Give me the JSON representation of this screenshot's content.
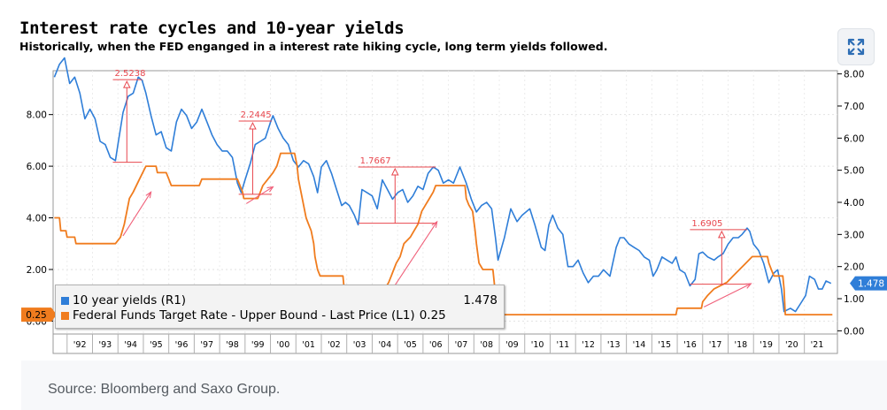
{
  "chart_data": {
    "type": "line",
    "title": "Interest rate cycles and 10-year yields",
    "subtitle": "Historically, when the FED enganged in a interest rate hiking cycle, long term yields followed.",
    "source": "Source: Bloomberg and Saxo Group.",
    "x_ticks": [
      "'92",
      "'93",
      "'94",
      "'95",
      "'96",
      "'97",
      "'98",
      "'99",
      "'00",
      "'01",
      "'02",
      "'03",
      "'04",
      "'05",
      "'06",
      "'07",
      "'08",
      "'09",
      "'10",
      "'11",
      "'12",
      "'13",
      "'14",
      "'15",
      "'16",
      "'17",
      "'18",
      "'19",
      "'20",
      "'21"
    ],
    "xlim": [
      1991.45,
      2022.3
    ],
    "left_axis": {
      "ticks": [
        "0.00",
        "2.00",
        "4.00",
        "6.00",
        "8.00"
      ],
      "values": [
        0,
        2,
        4,
        6,
        8
      ],
      "ylim": [
        -0.5,
        9.7
      ]
    },
    "right_axis": {
      "ticks": [
        "0.00",
        "1.00",
        "2.00",
        "3.00",
        "4.00",
        "5.00",
        "6.00",
        "7.00",
        "8.00"
      ],
      "values": [
        0,
        1,
        2,
        3,
        4,
        5,
        6,
        7,
        8
      ],
      "ylim": [
        -0.1,
        8.1
      ]
    },
    "series": [
      {
        "name": "10 year yields (R1)",
        "color": "#2f7ed8",
        "axis": "right",
        "last_value": "1.478",
        "points": [
          [
            1991.5,
            7.9
          ],
          [
            1991.7,
            8.3
          ],
          [
            1991.9,
            8.5
          ],
          [
            1992.1,
            7.7
          ],
          [
            1992.3,
            7.9
          ],
          [
            1992.5,
            7.4
          ],
          [
            1992.7,
            6.6
          ],
          [
            1992.9,
            6.9
          ],
          [
            1993.1,
            6.6
          ],
          [
            1993.3,
            5.9
          ],
          [
            1993.5,
            5.8
          ],
          [
            1993.7,
            5.4
          ],
          [
            1993.9,
            5.3
          ],
          [
            1994.0,
            5.8
          ],
          [
            1994.2,
            6.8
          ],
          [
            1994.4,
            7.3
          ],
          [
            1994.6,
            7.4
          ],
          [
            1994.8,
            7.9
          ],
          [
            1994.95,
            7.8
          ],
          [
            1995.1,
            7.4
          ],
          [
            1995.3,
            6.7
          ],
          [
            1995.5,
            6.1
          ],
          [
            1995.7,
            6.2
          ],
          [
            1995.9,
            5.7
          ],
          [
            1996.1,
            5.6
          ],
          [
            1996.3,
            6.5
          ],
          [
            1996.5,
            6.9
          ],
          [
            1996.7,
            6.7
          ],
          [
            1996.9,
            6.3
          ],
          [
            1997.1,
            6.5
          ],
          [
            1997.3,
            6.9
          ],
          [
            1997.5,
            6.5
          ],
          [
            1997.7,
            6.1
          ],
          [
            1997.9,
            5.8
          ],
          [
            1998.1,
            5.6
          ],
          [
            1998.3,
            5.6
          ],
          [
            1998.5,
            5.4
          ],
          [
            1998.7,
            4.6
          ],
          [
            1998.85,
            4.3
          ],
          [
            1999.0,
            4.7
          ],
          [
            1999.2,
            5.2
          ],
          [
            1999.4,
            5.8
          ],
          [
            1999.6,
            5.9
          ],
          [
            1999.8,
            6.0
          ],
          [
            2000.0,
            6.5
          ],
          [
            2000.1,
            6.7
          ],
          [
            2000.3,
            6.3
          ],
          [
            2000.5,
            6.0
          ],
          [
            2000.7,
            5.8
          ],
          [
            2000.9,
            5.3
          ],
          [
            2001.1,
            5.1
          ],
          [
            2001.3,
            5.3
          ],
          [
            2001.5,
            5.2
          ],
          [
            2001.7,
            4.8
          ],
          [
            2001.85,
            4.3
          ],
          [
            2002.0,
            5.1
          ],
          [
            2002.2,
            5.3
          ],
          [
            2002.4,
            4.9
          ],
          [
            2002.6,
            4.4
          ],
          [
            2002.8,
            3.9
          ],
          [
            2002.95,
            4.0
          ],
          [
            2003.1,
            3.9
          ],
          [
            2003.3,
            3.6
          ],
          [
            2003.45,
            3.3
          ],
          [
            2003.6,
            4.4
          ],
          [
            2003.8,
            4.3
          ],
          [
            2004.0,
            4.2
          ],
          [
            2004.2,
            3.8
          ],
          [
            2004.4,
            4.7
          ],
          [
            2004.6,
            4.4
          ],
          [
            2004.8,
            4.1
          ],
          [
            2005.0,
            4.3
          ],
          [
            2005.2,
            4.4
          ],
          [
            2005.4,
            4.0
          ],
          [
            2005.6,
            4.2
          ],
          [
            2005.8,
            4.5
          ],
          [
            2006.0,
            4.4
          ],
          [
            2006.2,
            4.9
          ],
          [
            2006.4,
            5.1
          ],
          [
            2006.6,
            5.0
          ],
          [
            2006.8,
            4.6
          ],
          [
            2007.0,
            4.7
          ],
          [
            2007.2,
            4.6
          ],
          [
            2007.45,
            5.1
          ],
          [
            2007.7,
            4.6
          ],
          [
            2007.9,
            4.1
          ],
          [
            2008.1,
            3.7
          ],
          [
            2008.3,
            3.9
          ],
          [
            2008.5,
            4.0
          ],
          [
            2008.7,
            3.8
          ],
          [
            2008.85,
            2.9
          ],
          [
            2008.95,
            2.2
          ],
          [
            2009.2,
            2.9
          ],
          [
            2009.45,
            3.8
          ],
          [
            2009.7,
            3.4
          ],
          [
            2009.9,
            3.6
          ],
          [
            2010.2,
            3.8
          ],
          [
            2010.4,
            3.3
          ],
          [
            2010.65,
            2.6
          ],
          [
            2010.8,
            2.5
          ],
          [
            2010.95,
            3.3
          ],
          [
            2011.1,
            3.6
          ],
          [
            2011.3,
            3.2
          ],
          [
            2011.5,
            3.0
          ],
          [
            2011.7,
            2.0
          ],
          [
            2011.9,
            2.0
          ],
          [
            2012.1,
            2.2
          ],
          [
            2012.3,
            1.8
          ],
          [
            2012.5,
            1.5
          ],
          [
            2012.7,
            1.7
          ],
          [
            2012.9,
            1.7
          ],
          [
            2013.1,
            1.9
          ],
          [
            2013.35,
            1.7
          ],
          [
            2013.6,
            2.6
          ],
          [
            2013.75,
            2.9
          ],
          [
            2013.9,
            2.9
          ],
          [
            2014.1,
            2.7
          ],
          [
            2014.3,
            2.6
          ],
          [
            2014.5,
            2.5
          ],
          [
            2014.7,
            2.3
          ],
          [
            2014.9,
            2.2
          ],
          [
            2015.05,
            1.7
          ],
          [
            2015.2,
            1.9
          ],
          [
            2015.4,
            2.3
          ],
          [
            2015.6,
            2.2
          ],
          [
            2015.8,
            2.1
          ],
          [
            2015.95,
            2.3
          ],
          [
            2016.1,
            1.9
          ],
          [
            2016.3,
            1.8
          ],
          [
            2016.5,
            1.4
          ],
          [
            2016.7,
            1.6
          ],
          [
            2016.85,
            2.4
          ],
          [
            2017.0,
            2.45
          ],
          [
            2017.2,
            2.3
          ],
          [
            2017.45,
            2.2
          ],
          [
            2017.6,
            2.3
          ],
          [
            2017.8,
            2.4
          ],
          [
            2018.0,
            2.7
          ],
          [
            2018.2,
            2.9
          ],
          [
            2018.4,
            2.9
          ],
          [
            2018.55,
            3.0
          ],
          [
            2018.75,
            3.2
          ],
          [
            2018.85,
            3.1
          ],
          [
            2019.0,
            2.7
          ],
          [
            2019.2,
            2.5
          ],
          [
            2019.4,
            2.1
          ],
          [
            2019.6,
            1.5
          ],
          [
            2019.8,
            1.8
          ],
          [
            2019.95,
            1.9
          ],
          [
            2020.1,
            1.3
          ],
          [
            2020.2,
            0.6
          ],
          [
            2020.45,
            0.7
          ],
          [
            2020.65,
            0.6
          ],
          [
            2020.85,
            0.85
          ],
          [
            2021.05,
            1.1
          ],
          [
            2021.2,
            1.7
          ],
          [
            2021.4,
            1.6
          ],
          [
            2021.55,
            1.3
          ],
          [
            2021.7,
            1.3
          ],
          [
            2021.85,
            1.55
          ],
          [
            2022.05,
            1.478
          ]
        ]
      },
      {
        "name": "Federal Funds Target Rate - Upper Bound - Last Price (L1)",
        "color": "#f07c1e",
        "axis": "left",
        "last_value": "0.25",
        "points": [
          [
            1991.5,
            4.0
          ],
          [
            1991.7,
            4.0
          ],
          [
            1991.75,
            3.5
          ],
          [
            1991.95,
            3.5
          ],
          [
            1992.0,
            3.25
          ],
          [
            1992.3,
            3.25
          ],
          [
            1992.35,
            3.0
          ],
          [
            1993.9,
            3.0
          ],
          [
            1994.1,
            3.25
          ],
          [
            1994.25,
            3.75
          ],
          [
            1994.35,
            4.25
          ],
          [
            1994.45,
            4.75
          ],
          [
            1994.6,
            5.0
          ],
          [
            1994.85,
            5.5
          ],
          [
            1995.1,
            6.0
          ],
          [
            1995.5,
            6.0
          ],
          [
            1995.55,
            5.75
          ],
          [
            1995.9,
            5.75
          ],
          [
            1996.0,
            5.5
          ],
          [
            1996.1,
            5.25
          ],
          [
            1997.2,
            5.25
          ],
          [
            1997.3,
            5.5
          ],
          [
            1998.7,
            5.5
          ],
          [
            1998.8,
            5.25
          ],
          [
            1998.9,
            5.0
          ],
          [
            1998.95,
            4.75
          ],
          [
            1999.5,
            4.75
          ],
          [
            1999.6,
            5.0
          ],
          [
            1999.7,
            5.25
          ],
          [
            1999.9,
            5.5
          ],
          [
            2000.1,
            5.75
          ],
          [
            2000.25,
            6.0
          ],
          [
            2000.4,
            6.5
          ],
          [
            2000.95,
            6.5
          ],
          [
            2001.05,
            6.0
          ],
          [
            2001.1,
            5.5
          ],
          [
            2001.2,
            5.0
          ],
          [
            2001.3,
            4.5
          ],
          [
            2001.4,
            4.0
          ],
          [
            2001.5,
            3.75
          ],
          [
            2001.6,
            3.5
          ],
          [
            2001.7,
            3.0
          ],
          [
            2001.75,
            2.5
          ],
          [
            2001.85,
            2.0
          ],
          [
            2001.95,
            1.75
          ],
          [
            2002.85,
            1.75
          ],
          [
            2002.9,
            1.25
          ],
          [
            2003.45,
            1.25
          ],
          [
            2003.5,
            1.0
          ],
          [
            2004.45,
            1.0
          ],
          [
            2004.5,
            1.25
          ],
          [
            2004.65,
            1.5
          ],
          [
            2004.75,
            1.75
          ],
          [
            2004.85,
            2.0
          ],
          [
            2004.95,
            2.25
          ],
          [
            2005.1,
            2.5
          ],
          [
            2005.25,
            3.0
          ],
          [
            2005.5,
            3.25
          ],
          [
            2005.65,
            3.5
          ],
          [
            2005.8,
            3.75
          ],
          [
            2005.95,
            4.25
          ],
          [
            2006.1,
            4.5
          ],
          [
            2006.25,
            4.75
          ],
          [
            2006.4,
            5.0
          ],
          [
            2006.5,
            5.25
          ],
          [
            2007.65,
            5.25
          ],
          [
            2007.7,
            4.75
          ],
          [
            2007.8,
            4.5
          ],
          [
            2007.95,
            4.25
          ],
          [
            2008.05,
            3.5
          ],
          [
            2008.1,
            3.0
          ],
          [
            2008.2,
            2.25
          ],
          [
            2008.35,
            2.0
          ],
          [
            2008.75,
            2.0
          ],
          [
            2008.8,
            1.5
          ],
          [
            2008.85,
            1.0
          ],
          [
            2008.95,
            0.25
          ],
          [
            2015.95,
            0.25
          ],
          [
            2016.0,
            0.5
          ],
          [
            2016.95,
            0.5
          ],
          [
            2017.0,
            0.75
          ],
          [
            2017.2,
            1.0
          ],
          [
            2017.45,
            1.25
          ],
          [
            2017.95,
            1.5
          ],
          [
            2018.2,
            1.75
          ],
          [
            2018.45,
            2.0
          ],
          [
            2018.7,
            2.25
          ],
          [
            2018.95,
            2.5
          ],
          [
            2019.55,
            2.5
          ],
          [
            2019.6,
            2.25
          ],
          [
            2019.7,
            2.0
          ],
          [
            2019.8,
            1.75
          ],
          [
            2020.15,
            1.75
          ],
          [
            2020.2,
            1.25
          ],
          [
            2020.25,
            0.25
          ],
          [
            2022.1,
            0.25
          ]
        ]
      }
    ],
    "annotations": [
      {
        "label": "2.5238",
        "color": "#e8474e"
      },
      {
        "label": "2.2445",
        "color": "#e8474e"
      },
      {
        "label": "1.7667",
        "color": "#e8474e"
      },
      {
        "label": "1.6905",
        "color": "#e8474e"
      }
    ],
    "legend": [
      {
        "label": "10 year yields (R1)",
        "value": "1.478"
      },
      {
        "label": "Federal Funds Target Rate - Upper Bound - Last Price (L1)",
        "value": "0.25"
      }
    ]
  }
}
